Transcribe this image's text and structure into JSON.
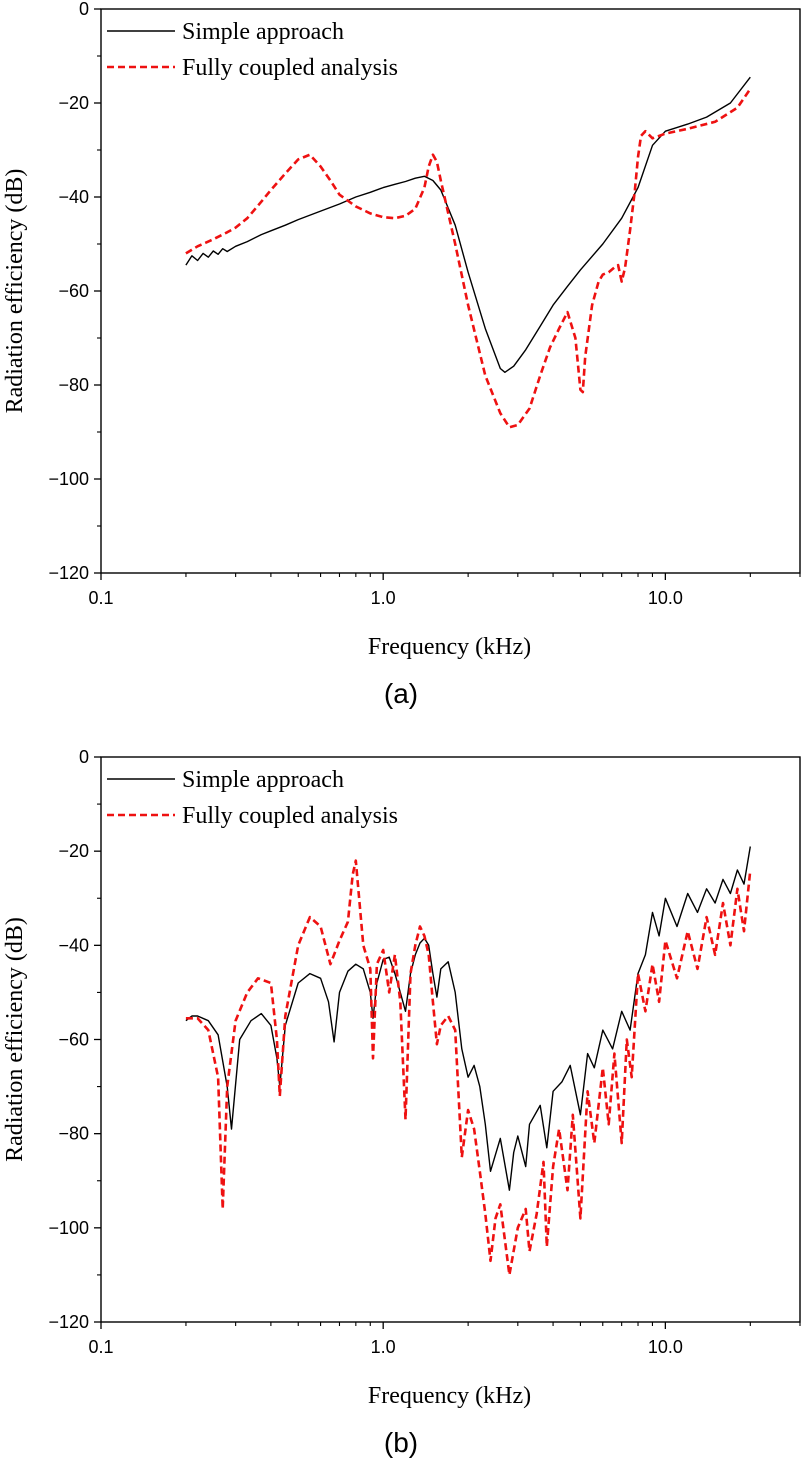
{
  "chart_data": [
    {
      "type": "line",
      "caption": "(a)",
      "xlabel": "Frequency (kHz)",
      "ylabel": "Radiation efficiency (dB)",
      "xscale": "log",
      "xlim": [
        0.1,
        30
      ],
      "ylim": [
        -120,
        0
      ],
      "xticks": [
        0.1,
        1.0,
        10.0
      ],
      "xtick_labels": [
        "0.1",
        "1.0",
        "10.0"
      ],
      "yticks": [
        0,
        -20,
        -40,
        -60,
        -80,
        -100,
        -120
      ],
      "ytick_labels": [
        "0",
        "−20",
        "−40",
        "−60",
        "−80",
        "−100",
        "−120"
      ],
      "legend_position": "top-left",
      "series": [
        {
          "name": "Simple approach",
          "color": "#000000",
          "dash": "solid",
          "x": [
            0.2,
            0.21,
            0.22,
            0.23,
            0.24,
            0.25,
            0.26,
            0.27,
            0.28,
            0.3,
            0.33,
            0.37,
            0.4,
            0.45,
            0.5,
            0.6,
            0.7,
            0.8,
            0.9,
            1.0,
            1.1,
            1.2,
            1.3,
            1.4,
            1.5,
            1.6,
            1.8,
            2.0,
            2.3,
            2.6,
            2.7,
            2.9,
            3.2,
            3.6,
            4.0,
            4.5,
            5.0,
            6.0,
            7.0,
            8.0,
            9.0,
            10.0,
            12.0,
            14.0,
            17.0,
            20.0
          ],
          "y": [
            -54.5,
            -52.5,
            -53.5,
            -52.0,
            -52.8,
            -51.5,
            -52.2,
            -51.0,
            -51.6,
            -50.5,
            -49.5,
            -48.0,
            -47.2,
            -46.0,
            -44.8,
            -43.0,
            -41.5,
            -40.0,
            -39.0,
            -38.0,
            -37.3,
            -36.7,
            -36.0,
            -35.6,
            -36.5,
            -38.5,
            -46.0,
            -56.0,
            -68.0,
            -76.5,
            -77.3,
            -76.0,
            -72.5,
            -67.5,
            -63.0,
            -59.0,
            -55.5,
            -50.0,
            -44.5,
            -38.0,
            -29.0,
            -26.0,
            -24.5,
            -23.0,
            -20.0,
            -14.5
          ]
        },
        {
          "name": "Fully coupled analysis",
          "color": "#ee1111",
          "dash": "dashed",
          "x": [
            0.2,
            0.22,
            0.25,
            0.28,
            0.3,
            0.33,
            0.37,
            0.4,
            0.45,
            0.5,
            0.55,
            0.6,
            0.65,
            0.7,
            0.8,
            0.9,
            1.0,
            1.1,
            1.2,
            1.3,
            1.4,
            1.45,
            1.5,
            1.55,
            1.6,
            1.8,
            2.0,
            2.3,
            2.6,
            2.8,
            3.0,
            3.3,
            3.6,
            3.9,
            4.2,
            4.5,
            4.8,
            5.0,
            5.1,
            5.2,
            5.5,
            5.8,
            6.0,
            6.3,
            6.6,
            6.8,
            7.0,
            7.2,
            7.5,
            7.8,
            8.0,
            8.2,
            8.5,
            9.0,
            10.0,
            12.0,
            15.0,
            18.0,
            20.0
          ],
          "y": [
            -52.0,
            -50.5,
            -49.0,
            -47.5,
            -46.5,
            -44.5,
            -41.0,
            -38.5,
            -35.0,
            -32.0,
            -31.0,
            -33.5,
            -36.5,
            -39.5,
            -42.0,
            -43.5,
            -44.3,
            -44.5,
            -44.0,
            -42.5,
            -38.0,
            -33.5,
            -31.0,
            -32.5,
            -36.5,
            -50.0,
            -63.0,
            -78.0,
            -86.0,
            -89.0,
            -88.5,
            -85.0,
            -78.0,
            -72.0,
            -68.0,
            -64.5,
            -70.0,
            -81.0,
            -81.5,
            -74.0,
            -63.0,
            -58.0,
            -56.5,
            -56.0,
            -55.0,
            -54.5,
            -58.0,
            -55.0,
            -47.0,
            -38.5,
            -31.5,
            -27.0,
            -26.0,
            -27.5,
            -26.5,
            -25.5,
            -24.0,
            -21.0,
            -17.0
          ]
        }
      ]
    },
    {
      "type": "line",
      "caption": "(b)",
      "xlabel": "Frequency (kHz)",
      "ylabel": "Radiation efficiency (dB)",
      "xscale": "log",
      "xlim": [
        0.1,
        30
      ],
      "ylim": [
        -120,
        0
      ],
      "xticks": [
        0.1,
        1.0,
        10.0
      ],
      "xtick_labels": [
        "0.1",
        "1.0",
        "10.0"
      ],
      "yticks": [
        0,
        -20,
        -40,
        -60,
        -80,
        -100,
        -120
      ],
      "ytick_labels": [
        "0",
        "−20",
        "−40",
        "−60",
        "−80",
        "−100",
        "−120"
      ],
      "legend_position": "top-left",
      "series": [
        {
          "name": "Simple approach",
          "color": "#000000",
          "dash": "solid",
          "x": [
            0.2,
            0.21,
            0.22,
            0.24,
            0.26,
            0.28,
            0.29,
            0.31,
            0.34,
            0.37,
            0.4,
            0.42,
            0.43,
            0.45,
            0.5,
            0.55,
            0.6,
            0.64,
            0.67,
            0.7,
            0.75,
            0.8,
            0.85,
            0.9,
            0.92,
            0.95,
            1.0,
            1.05,
            1.1,
            1.15,
            1.2,
            1.25,
            1.3,
            1.35,
            1.4,
            1.45,
            1.5,
            1.55,
            1.6,
            1.7,
            1.8,
            1.9,
            2.0,
            2.1,
            2.2,
            2.3,
            2.4,
            2.6,
            2.8,
            2.9,
            3.0,
            3.2,
            3.3,
            3.6,
            3.8,
            4.0,
            4.3,
            4.6,
            5.0,
            5.3,
            5.6,
            6.0,
            6.5,
            7.0,
            7.5,
            8.0,
            8.5,
            9.0,
            9.5,
            10.0,
            11.0,
            12.0,
            13.0,
            14.0,
            15.0,
            16.0,
            17.0,
            18.0,
            19.0,
            20.0
          ],
          "y": [
            -56.0,
            -55.0,
            -55.0,
            -56.0,
            -59.0,
            -70.0,
            -79.0,
            -60.0,
            -56.0,
            -54.5,
            -57.0,
            -64.0,
            -70.0,
            -57.0,
            -48.0,
            -46.0,
            -47.0,
            -52.0,
            -60.5,
            -50.0,
            -45.5,
            -44.0,
            -45.0,
            -50.0,
            -55.5,
            -48.0,
            -43.0,
            -42.5,
            -46.0,
            -50.0,
            -54.0,
            -46.0,
            -42.0,
            -39.5,
            -38.5,
            -40.0,
            -46.0,
            -51.0,
            -45.0,
            -43.5,
            -50.0,
            -62.0,
            -68.0,
            -65.5,
            -70.0,
            -78.0,
            -88.0,
            -81.0,
            -92.0,
            -84.0,
            -80.5,
            -87.0,
            -78.0,
            -74.0,
            -83.0,
            -71.0,
            -69.0,
            -65.5,
            -76.0,
            -63.0,
            -66.0,
            -58.0,
            -62.0,
            -54.0,
            -58.0,
            -46.0,
            -42.0,
            -33.0,
            -38.0,
            -30.0,
            -36.0,
            -29.0,
            -33.0,
            -28.0,
            -31.0,
            -26.0,
            -29.0,
            -24.0,
            -27.0,
            -19.0
          ]
        },
        {
          "name": "Fully coupled analysis",
          "color": "#ee1111",
          "dash": "dashed",
          "x": [
            0.2,
            0.22,
            0.24,
            0.26,
            0.27,
            0.28,
            0.3,
            0.33,
            0.36,
            0.4,
            0.42,
            0.43,
            0.45,
            0.5,
            0.55,
            0.6,
            0.65,
            0.7,
            0.75,
            0.78,
            0.8,
            0.85,
            0.9,
            0.92,
            0.95,
            1.0,
            1.05,
            1.1,
            1.15,
            1.2,
            1.25,
            1.3,
            1.35,
            1.4,
            1.45,
            1.5,
            1.55,
            1.6,
            1.7,
            1.8,
            1.9,
            2.0,
            2.1,
            2.2,
            2.3,
            2.4,
            2.5,
            2.6,
            2.8,
            3.0,
            3.2,
            3.3,
            3.5,
            3.7,
            3.8,
            4.0,
            4.2,
            4.5,
            4.7,
            5.0,
            5.3,
            5.6,
            6.0,
            6.3,
            6.6,
            7.0,
            7.3,
            7.6,
            8.0,
            8.5,
            9.0,
            9.5,
            10.0,
            11.0,
            12.0,
            13.0,
            14.0,
            15.0,
            16.0,
            17.0,
            18.0,
            19.0,
            20.0
          ],
          "y": [
            -55.5,
            -55.5,
            -58.0,
            -68.0,
            -96.0,
            -70.0,
            -56.0,
            -50.0,
            -47.0,
            -48.0,
            -60.0,
            -72.0,
            -55.0,
            -40.0,
            -34.0,
            -36.0,
            -44.0,
            -39.0,
            -35.0,
            -25.0,
            -22.0,
            -40.0,
            -45.0,
            -64.0,
            -44.0,
            -41.0,
            -50.0,
            -42.0,
            -52.0,
            -77.0,
            -46.0,
            -40.0,
            -36.0,
            -38.0,
            -42.0,
            -52.0,
            -61.0,
            -57.0,
            -55.0,
            -58.0,
            -85.0,
            -75.0,
            -79.0,
            -88.0,
            -97.0,
            -107.0,
            -98.0,
            -95.0,
            -110.0,
            -100.0,
            -96.0,
            -105.0,
            -97.0,
            -86.0,
            -104.0,
            -87.0,
            -79.0,
            -92.0,
            -76.0,
            -98.0,
            -71.0,
            -82.0,
            -66.0,
            -78.0,
            -63.0,
            -82.0,
            -60.0,
            -68.0,
            -46.0,
            -54.0,
            -44.0,
            -52.0,
            -39.0,
            -47.0,
            -37.0,
            -45.0,
            -34.0,
            -42.0,
            -31.0,
            -40.0,
            -28.0,
            -37.0,
            -24.0
          ]
        }
      ]
    }
  ]
}
